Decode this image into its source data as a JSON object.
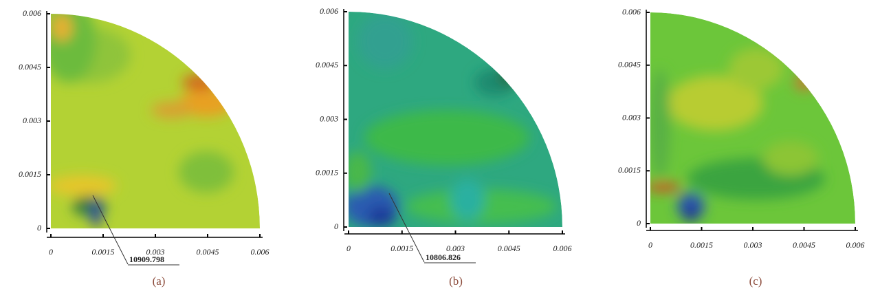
{
  "chart_data": [
    {
      "type": "contour",
      "caption": "(a)",
      "xlim": [
        0,
        0.006
      ],
      "ylim": [
        0,
        0.006
      ],
      "xticks": [
        0,
        0.0015,
        0.003,
        0.0045,
        0.006
      ],
      "yticks": [
        0,
        0.0015,
        0.003,
        0.0045,
        0.006
      ],
      "annotation": "10909.798"
    },
    {
      "type": "contour",
      "caption": "(b)",
      "xlim": [
        0,
        0.006
      ],
      "ylim": [
        0,
        0.006
      ],
      "xticks": [
        0,
        0.0015,
        0.003,
        0.0045,
        0.006
      ],
      "yticks": [
        0,
        0.0015,
        0.003,
        0.0045,
        0.006
      ],
      "annotation": "10806.826"
    },
    {
      "type": "contour",
      "caption": "(c)",
      "xlim": [
        0,
        0.006
      ],
      "ylim": [
        0,
        0.006
      ],
      "xticks": [
        0,
        0.0015,
        0.003,
        0.0045,
        0.006
      ],
      "yticks": [
        0,
        0.0015,
        0.003,
        0.0045,
        0.006
      ]
    }
  ]
}
